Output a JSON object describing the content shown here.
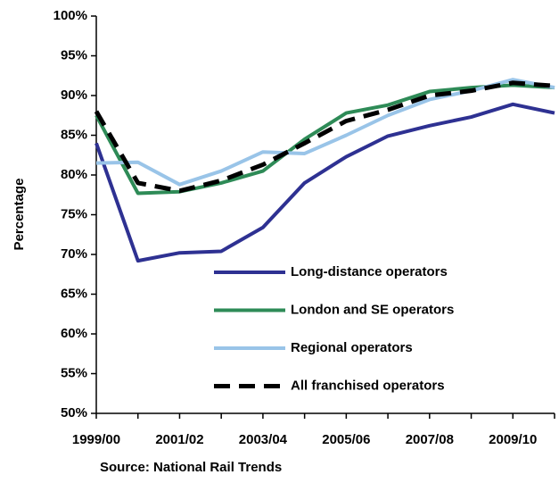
{
  "chart_data": {
    "type": "line",
    "y_label": "Percentage",
    "source": "Source: National Rail Trends",
    "categories": [
      "1999/00",
      null,
      "2001/02",
      null,
      "2003/04",
      null,
      "2005/06",
      null,
      "2007/08",
      null,
      "2009/10",
      null
    ],
    "series": [
      {
        "name": "Long-distance operators",
        "color": "#2e3192",
        "dash": false,
        "values": [
          84,
          69.2,
          70.2,
          70.4,
          73.4,
          79,
          82.3,
          84.9,
          86.2,
          87.3,
          88.9,
          87.8
        ]
      },
      {
        "name": "London and SE operators",
        "color": "#2e8b57",
        "dash": false,
        "values": [
          87.5,
          77.7,
          77.9,
          79,
          80.5,
          84.5,
          87.8,
          88.8,
          90.5,
          91,
          91.3,
          91
        ]
      },
      {
        "name": "Regional operators",
        "color": "#99c4e8",
        "dash": false,
        "values": [
          81.5,
          81.6,
          78.8,
          80.5,
          82.9,
          82.7,
          85,
          87.5,
          89.5,
          90.6,
          92,
          91
        ]
      },
      {
        "name": "All franchised operators",
        "color": "#000000",
        "dash": true,
        "values": [
          88,
          79,
          78,
          79.3,
          81.3,
          84,
          86.8,
          88.2,
          90,
          90.6,
          91.6,
          91.2
        ]
      }
    ],
    "ylim": [
      50,
      100
    ],
    "yticks": [
      {
        "value": 50,
        "label": "50%"
      },
      {
        "value": 55,
        "label": "55%"
      },
      {
        "value": 60,
        "label": "60%"
      },
      {
        "value": 65,
        "label": "65%"
      },
      {
        "value": 70,
        "label": "70%"
      },
      {
        "value": 75,
        "label": "75%"
      },
      {
        "value": 80,
        "label": "80%"
      },
      {
        "value": 85,
        "label": "85%"
      },
      {
        "value": 90,
        "label": "90%"
      },
      {
        "value": 95,
        "label": "95%"
      },
      {
        "value": 100,
        "label": "100%"
      }
    ],
    "grid": false,
    "legend": "lower right"
  }
}
